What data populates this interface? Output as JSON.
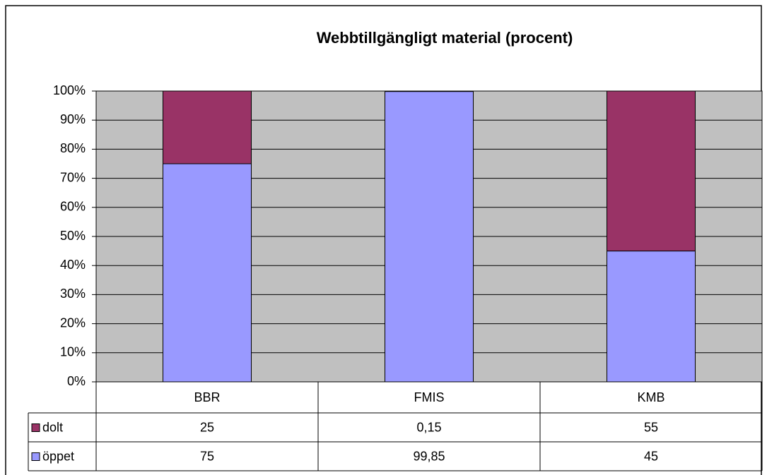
{
  "chart_data": {
    "type": "bar",
    "stacked": true,
    "title": "Webbtillgängligt material (procent)",
    "categories": [
      "BBR",
      "FMIS",
      "KMB"
    ],
    "series": [
      {
        "name": "dolt",
        "color": "#993366",
        "values": [
          25,
          0.15,
          55
        ],
        "value_labels": [
          "25",
          "0,15",
          "55"
        ]
      },
      {
        "name": "öppet",
        "color": "#9999ff",
        "values": [
          75,
          99.85,
          45
        ],
        "value_labels": [
          "75",
          "99,85",
          "45"
        ]
      }
    ],
    "ylim": [
      0,
      100
    ],
    "yticks": [
      {
        "value": 0,
        "label": "0%"
      },
      {
        "value": 10,
        "label": "10%"
      },
      {
        "value": 20,
        "label": "20%"
      },
      {
        "value": 30,
        "label": "30%"
      },
      {
        "value": 40,
        "label": "40%"
      },
      {
        "value": 50,
        "label": "50%"
      },
      {
        "value": 60,
        "label": "60%"
      },
      {
        "value": 70,
        "label": "70%"
      },
      {
        "value": 80,
        "label": "80%"
      },
      {
        "value": 90,
        "label": "90%"
      },
      {
        "value": 100,
        "label": "100%"
      }
    ],
    "grid": true,
    "plot_background": "#c0c0c0",
    "data_table": true
  }
}
